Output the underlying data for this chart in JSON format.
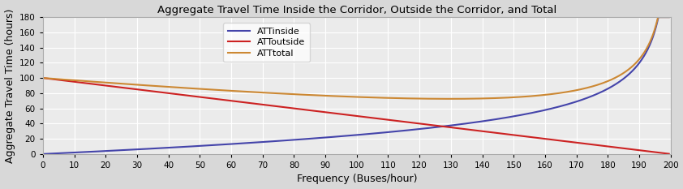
{
  "title": "Aggregate Travel Time Inside the Corridor, Outside the Corridor, and Total",
  "xlabel": "Frequency (Buses/hour)",
  "ylabel": "Aggregate Travel Time (hours)",
  "xlim": [
    0,
    200
  ],
  "ylim": [
    0,
    180
  ],
  "yticks": [
    0,
    20,
    40,
    60,
    80,
    100,
    120,
    140,
    160,
    180
  ],
  "xticks": [
    0,
    10,
    20,
    30,
    40,
    50,
    60,
    70,
    80,
    90,
    100,
    110,
    120,
    130,
    140,
    150,
    160,
    170,
    180,
    190,
    200
  ],
  "legend_labels": [
    "ATTinside",
    "ATToutside",
    "ATTtotal"
  ],
  "line_colors": [
    "#4444aa",
    "#cc2222",
    "#cc8833"
  ],
  "background_color": "#d8d8d8",
  "plot_bg_color": "#ebebeb",
  "grid_color": "#ffffff",
  "title_fontsize": 9.5,
  "label_fontsize": 9,
  "tick_fontsize": 7.5,
  "legend_fontsize": 8,
  "inside_params": {
    "A": 0.0008,
    "p": 2.0,
    "cap": 196.0,
    "q": 1.5
  },
  "outside_params": {
    "start": 100.0,
    "end_x": 200.0
  }
}
